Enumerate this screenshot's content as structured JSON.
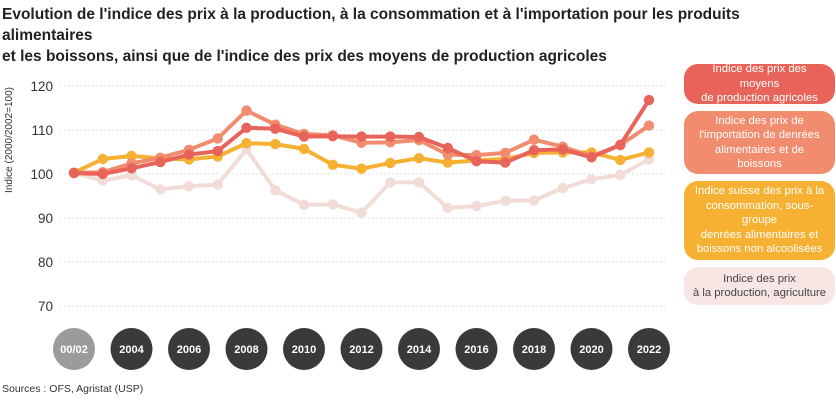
{
  "title": {
    "line1": "Evolution de l'indice des prix à la production, à la consommation et à l'importation pour les produits alimentaires",
    "line2": "et les boissons, ainsi que de l'indice des prix des moyens de production agricoles"
  },
  "source": "Sources : OFS, Agristat (USP)",
  "legend": [
    {
      "name": "Indice des prix des moyens de production agricoles",
      "lines": [
        "Indice des prix des moyens",
        "de production agricoles"
      ],
      "color": "#e8645a",
      "text_color": "#ffffff"
    },
    {
      "name": "Indice des prix de l'importation de denrées alimentaires et de boissons",
      "lines": [
        "Indice des prix de",
        "l'importation de denrées",
        "alimentaires et de boissons"
      ],
      "color": "#f28c6e",
      "text_color": "#ffffff"
    },
    {
      "name": "Indice suisse des prix à la consommation, sous-groupe denrées alimentaires et boissons non alcoolisées",
      "lines": [
        "Indice suisse des prix à la",
        "consommation, sous-groupe",
        "denrées alimentaires et",
        "boissons non alcoolisées"
      ],
      "color": "#f6b032",
      "text_color": "#ffffff"
    },
    {
      "name": "Indice des prix à la production, agriculture",
      "lines": [
        "Indice des prix",
        "à la production, agriculture"
      ],
      "color": "#f7e6e3",
      "text_color": "#444444"
    }
  ],
  "chart_data": {
    "type": "line",
    "title": "Evolution de l'indice des prix à la production, à la consommation et à l'importation pour les produits alimentaires et les boissons, ainsi que de l'indice des prix des moyens de production agricoles",
    "ylabel": "Indice (2000/2002=100)",
    "xlabel": "",
    "ylim": [
      70,
      120
    ],
    "yticks": [
      70,
      80,
      90,
      100,
      110,
      120
    ],
    "x": [
      "00/02",
      "2003",
      "2004",
      "2005",
      "2006",
      "2007",
      "2008",
      "2009",
      "2010",
      "2011",
      "2012",
      "2013",
      "2014",
      "2015",
      "2016",
      "2017",
      "2018",
      "2019",
      "2020",
      "2021",
      "2022"
    ],
    "x_tick_labels": [
      "00/02",
      "2004",
      "2006",
      "2008",
      "2010",
      "2012",
      "2014",
      "2016",
      "2018",
      "2020",
      "2022"
    ],
    "x_tick_indices": [
      0,
      2,
      4,
      6,
      8,
      10,
      12,
      14,
      16,
      18,
      20
    ],
    "series": [
      {
        "name": "Indice des prix à la production, agriculture",
        "color": "#f2dcd7",
        "values": [
          100.2,
          98.5,
          99.7,
          96.5,
          97.2,
          97.6,
          105.6,
          96.3,
          93.0,
          93.1,
          91.2,
          98.1,
          98.1,
          92.3,
          92.7,
          93.9,
          94.0,
          96.8,
          98.8,
          99.8,
          103.3
        ]
      },
      {
        "name": "Indice suisse des prix à la consommation, sous-groupe denrées alimentaires et boissons non alcoolisées",
        "color": "#f6b032",
        "values": [
          100.3,
          103.4,
          104.1,
          103.6,
          103.3,
          104.0,
          107.0,
          106.8,
          105.7,
          102.1,
          101.2,
          102.5,
          103.6,
          102.6,
          103.1,
          103.4,
          104.8,
          104.9,
          104.9,
          103.2,
          104.9
        ]
      },
      {
        "name": "Indice des prix de l'importation de denrées alimentaires et de boissons",
        "color": "#f28c6e",
        "values": [
          100.3,
          100.4,
          102.4,
          103.7,
          105.5,
          108.1,
          114.4,
          111.2,
          109.1,
          108.8,
          107.1,
          107.2,
          107.7,
          104.4,
          104.3,
          104.8,
          107.8,
          106.2,
          104.0,
          106.6,
          111.0
        ]
      },
      {
        "name": "Indice des prix des moyens de production agricoles",
        "color": "#e8645a",
        "values": [
          100.2,
          100.0,
          101.3,
          102.7,
          104.4,
          105.2,
          110.5,
          110.3,
          108.5,
          108.6,
          108.5,
          108.5,
          108.4,
          105.9,
          102.9,
          102.6,
          105.4,
          105.6,
          103.8,
          106.6,
          116.8
        ]
      }
    ]
  }
}
